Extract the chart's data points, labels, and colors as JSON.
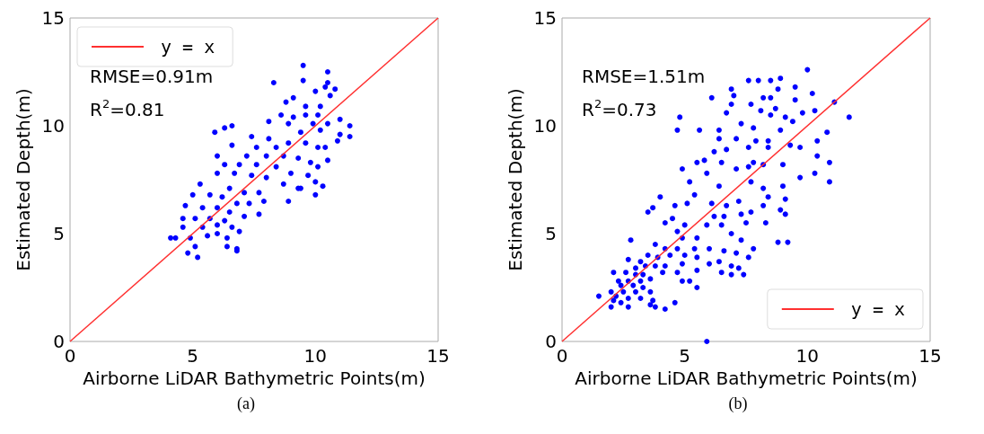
{
  "chart_data": [
    {
      "type": "scatter",
      "title": "(a)",
      "xlabel": "Airborne LiDAR Bathymetric Points(m)",
      "ylabel": "Estimated Depth(m)",
      "annotations": [
        "RMSE=0.91m",
        "R$^{2}$=0.81"
      ],
      "xlim": [
        0,
        15
      ],
      "ylim": [
        0,
        15
      ],
      "xticks": [
        0,
        5,
        10,
        15
      ],
      "yticks": [
        0,
        5,
        10,
        15
      ],
      "grid": false,
      "legend": "top left",
      "series": [
        {
          "color": "#0000ff",
          "marker": "circle",
          "x": [
            9.5,
            10.5,
            8.3,
            9.5,
            10.5,
            10.8,
            10.0,
            10.4,
            10.6,
            9.1,
            8.8,
            9.6,
            10.2,
            8.6,
            9.1,
            9.6,
            10.1,
            8.1,
            8.9,
            9.9,
            10.5,
            11.0,
            11.4,
            11.4,
            6.6,
            6.3,
            5.9,
            7.4,
            9.4,
            10.2,
            10.9,
            11.0,
            9.6,
            8.9,
            8.1,
            6.6,
            7.6,
            8.4,
            10.1,
            10.4,
            6.0,
            7.2,
            8.0,
            8.7,
            9.3,
            10.5,
            9.8,
            10.1,
            6.3,
            6.9,
            7.6,
            8.4,
            9.0,
            9.7,
            6.0,
            6.7,
            7.4,
            8.0,
            8.7,
            10.0,
            10.3,
            5.3,
            9.3,
            9.4,
            6.5,
            7.1,
            7.7,
            10.0,
            5.0,
            5.7,
            6.2,
            6.8,
            7.3,
            7.9,
            8.9,
            4.7,
            5.4,
            6.0,
            6.5,
            7.1,
            7.7,
            4.6,
            5.1,
            5.7,
            6.3,
            4.6,
            5.4,
            6.0,
            6.6,
            6.9,
            4.3,
            4.1,
            4.9,
            5.6,
            6.4,
            6.0,
            5.1,
            6.4,
            6.8,
            4.8,
            5.2,
            6.8
          ],
          "values": [
            12.8,
            12.5,
            12.0,
            12.1,
            12.0,
            11.7,
            11.6,
            11.8,
            11.4,
            11.3,
            11.1,
            10.9,
            10.9,
            10.5,
            10.4,
            10.5,
            10.5,
            10.2,
            10.1,
            10.1,
            10.1,
            10.3,
            10.0,
            9.5,
            10.0,
            9.9,
            9.7,
            9.5,
            9.7,
            9.8,
            9.3,
            9.6,
            9.2,
            9.2,
            9.4,
            9.1,
            9.0,
            9.0,
            9.0,
            9.0,
            8.6,
            8.6,
            8.6,
            8.6,
            8.5,
            8.4,
            8.3,
            8.1,
            8.2,
            8.2,
            8.2,
            8.1,
            7.8,
            7.7,
            7.8,
            7.8,
            7.7,
            7.6,
            7.3,
            7.4,
            7.2,
            7.3,
            7.1,
            7.1,
            7.1,
            6.9,
            6.9,
            6.8,
            6.8,
            6.8,
            6.7,
            6.4,
            6.4,
            6.5,
            6.5,
            6.3,
            6.2,
            6.2,
            6.0,
            5.8,
            5.9,
            5.7,
            5.7,
            5.7,
            5.6,
            5.3,
            5.3,
            5.4,
            5.3,
            5.1,
            4.8,
            4.8,
            4.8,
            4.9,
            4.8,
            5.0,
            4.4,
            4.4,
            4.3,
            4.1,
            3.9,
            4.2
          ]
        },
        {
          "type": "line",
          "name": "y = x",
          "color": "#ff3030",
          "marker": "none",
          "line_style": "solid",
          "x": [
            0,
            15
          ],
          "values": [
            0,
            15
          ]
        }
      ]
    },
    {
      "type": "scatter",
      "title": "(b)",
      "xlabel": "Airborne LiDAR Bathymetric Points(m)",
      "ylabel": "Estimated Depth(m)",
      "annotations": [
        "RMSE=1.51m",
        "R$^{2}$=0.73"
      ],
      "xlim": [
        0,
        15
      ],
      "ylim": [
        0,
        15
      ],
      "xticks": [
        0,
        5,
        10,
        15
      ],
      "yticks": [
        0,
        5,
        10,
        15
      ],
      "grid": false,
      "legend": "bottom right",
      "series": [
        {
          "color": "#0000ff",
          "marker": "circle",
          "x": [
            10.0,
            7.6,
            8.0,
            8.5,
            8.9,
            6.9,
            7.0,
            8.8,
            9.5,
            10.2,
            6.1,
            8.2,
            8.5,
            9.5,
            11.1,
            11.7,
            6.9,
            7.7,
            8.7,
            10.3,
            4.8,
            6.7,
            8.1,
            8.5,
            9.1,
            9.4,
            9.8,
            4.7,
            5.6,
            6.4,
            7.3,
            7.8,
            8.9,
            10.8,
            6.4,
            7.1,
            7.9,
            8.4,
            9.3,
            10.4,
            7.6,
            8.4,
            9.7,
            6.7,
            6.2,
            10.4,
            5.8,
            5.5,
            6.5,
            7.8,
            8.2,
            9.0,
            10.9,
            4.9,
            7.1,
            5.9,
            7.6,
            10.3,
            9.7,
            5.2,
            10.9,
            7.7,
            8.2,
            6.4,
            9.0,
            5.4,
            4.0,
            8.4,
            9.1,
            7.2,
            3.7,
            3.5,
            4.6,
            5.1,
            6.1,
            6.7,
            8.2,
            8.9,
            6.2,
            6.6,
            7.3,
            7.7,
            9.1,
            4.2,
            4.5,
            5.0,
            5.9,
            6.5,
            7.5,
            8.3,
            4.7,
            5.5,
            6.9,
            7.3,
            2.8,
            8.8,
            9.2,
            4.9,
            3.8,
            4.2,
            4.7,
            5.4,
            6.0,
            7.8,
            3.5,
            3.9,
            4.4,
            5.0,
            5.5,
            6.6,
            7.1,
            7.6,
            3.2,
            2.7,
            3.0,
            3.4,
            3.8,
            4.2,
            4.9,
            5.5,
            6.0,
            6.4,
            6.9,
            7.2,
            2.1,
            2.6,
            3.0,
            3.3,
            4.1,
            4.7,
            6.5,
            6.9,
            7.4,
            2.3,
            2.7,
            3.2,
            3.6,
            4.9,
            5.2,
            2.4,
            2.9,
            3.3,
            5.5,
            2.0,
            2.5,
            3.0,
            3.6,
            1.5,
            2.2,
            2.7,
            3.2,
            3.7,
            2.1,
            2.4,
            3.6,
            2.0,
            2.7,
            3.8,
            4.2,
            4.6,
            5.9
          ],
          "values": [
            12.6,
            12.1,
            12.1,
            12.1,
            12.2,
            11.7,
            11.4,
            11.7,
            11.8,
            11.5,
            11.3,
            11.3,
            11.3,
            11.2,
            11.1,
            10.4,
            11.0,
            11.0,
            10.8,
            10.7,
            10.4,
            10.6,
            10.7,
            10.5,
            10.4,
            10.2,
            10.6,
            9.8,
            9.8,
            9.8,
            10.1,
            9.9,
            9.8,
            9.7,
            9.4,
            9.4,
            9.3,
            9.3,
            9.1,
            9.3,
            9.0,
            9.0,
            9.0,
            8.9,
            8.8,
            8.6,
            8.4,
            8.3,
            8.3,
            8.3,
            8.2,
            8.2,
            8.3,
            8.0,
            8.0,
            7.8,
            8.1,
            7.8,
            7.6,
            7.4,
            7.4,
            7.4,
            7.1,
            7.2,
            7.2,
            6.8,
            6.7,
            6.7,
            6.6,
            6.5,
            6.2,
            6.0,
            6.3,
            6.4,
            6.4,
            6.3,
            6.3,
            6.1,
            5.8,
            5.8,
            5.9,
            6.0,
            5.9,
            5.5,
            5.7,
            5.4,
            5.4,
            5.4,
            5.5,
            5.5,
            5.1,
            4.8,
            5.0,
            4.7,
            4.7,
            4.6,
            4.6,
            4.8,
            4.5,
            4.3,
            4.3,
            4.3,
            4.3,
            4.3,
            4.0,
            3.9,
            4.0,
            4.0,
            3.9,
            4.2,
            4.1,
            3.9,
            3.7,
            3.8,
            3.4,
            3.5,
            3.5,
            3.5,
            3.6,
            3.3,
            3.6,
            3.7,
            3.5,
            3.4,
            3.2,
            3.2,
            3.1,
            3.1,
            3.2,
            3.2,
            3.2,
            3.1,
            3.1,
            2.8,
            2.8,
            2.8,
            2.9,
            2.8,
            2.8,
            2.6,
            2.6,
            2.5,
            2.5,
            2.3,
            2.3,
            2.3,
            2.3,
            2.1,
            2.1,
            2.0,
            2.0,
            1.9,
            1.9,
            1.8,
            1.7,
            1.6,
            1.6,
            1.6,
            1.5,
            1.8,
            0.0
          ]
        },
        {
          "type": "line",
          "name": "y = x",
          "color": "#ff3030",
          "marker": "none",
          "line_style": "solid",
          "x": [
            0,
            15
          ],
          "values": [
            0,
            15
          ]
        }
      ]
    }
  ]
}
